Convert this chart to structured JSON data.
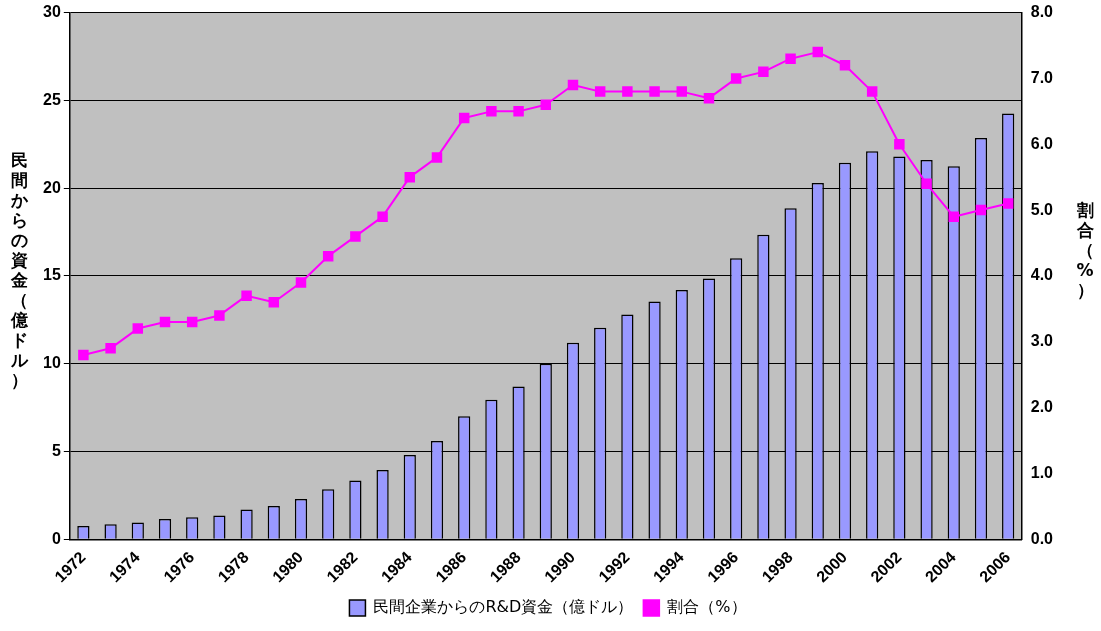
{
  "chart_data": {
    "type": "bar",
    "ylabel": "民間からの資金（億ドル）",
    "y2label": "割合（%）",
    "categories": [
      "1972",
      null,
      "1974",
      null,
      "1976",
      null,
      "1978",
      null,
      "1980",
      null,
      "1982",
      null,
      "1984",
      null,
      "1986",
      null,
      "1988",
      null,
      "1990",
      null,
      "1992",
      null,
      "1994",
      null,
      "1996",
      null,
      "1998",
      null,
      "2000",
      null,
      "2002",
      null,
      "2004",
      null,
      "2006"
    ],
    "series": [
      {
        "name": "民間企業からのR&D資金（億ドル）",
        "color": "#9999ff",
        "values": [
          0.75,
          0.85,
          0.95,
          1.15,
          1.25,
          1.35,
          1.7,
          1.9,
          2.3,
          2.85,
          3.35,
          3.95,
          4.8,
          5.6,
          7.0,
          7.95,
          8.7,
          10.0,
          11.2,
          12.05,
          12.8,
          13.55,
          14.2,
          14.85,
          16.0,
          17.35,
          18.85,
          20.3,
          21.45,
          22.1,
          21.8,
          21.6,
          21.25,
          22.85,
          24.25
        ]
      },
      {
        "name": "割合（%）",
        "type": "line",
        "axis": "y2",
        "color": "#ff00ff",
        "marker": "square",
        "values": [
          2.8,
          2.9,
          3.2,
          3.3,
          3.3,
          3.4,
          3.7,
          3.6,
          3.9,
          4.3,
          4.6,
          4.9,
          5.5,
          5.8,
          6.4,
          6.5,
          6.5,
          6.6,
          6.9,
          6.8,
          6.8,
          6.8,
          6.8,
          6.7,
          7.0,
          7.1,
          7.3,
          7.4,
          7.2,
          6.8,
          6.0,
          5.4,
          4.9,
          5.0,
          5.1
        ]
      }
    ],
    "ylim": [
      0,
      30
    ],
    "yticks": [
      0,
      5,
      10,
      15,
      20,
      25,
      30
    ],
    "y2lim": [
      0,
      8
    ],
    "y2ticks": [
      {
        "value": 0,
        "label": "0.0"
      },
      {
        "value": 1,
        "label": "1.0"
      },
      {
        "value": 2,
        "label": "2.0"
      },
      {
        "value": 3,
        "label": "3.0"
      },
      {
        "value": 4,
        "label": "4.0"
      },
      {
        "value": 5,
        "label": "5.0"
      },
      {
        "value": 6,
        "label": "6.0"
      },
      {
        "value": 7,
        "label": "7.0"
      },
      {
        "value": 8,
        "label": "8.0"
      }
    ],
    "grid": "y",
    "legend": "bottom"
  }
}
